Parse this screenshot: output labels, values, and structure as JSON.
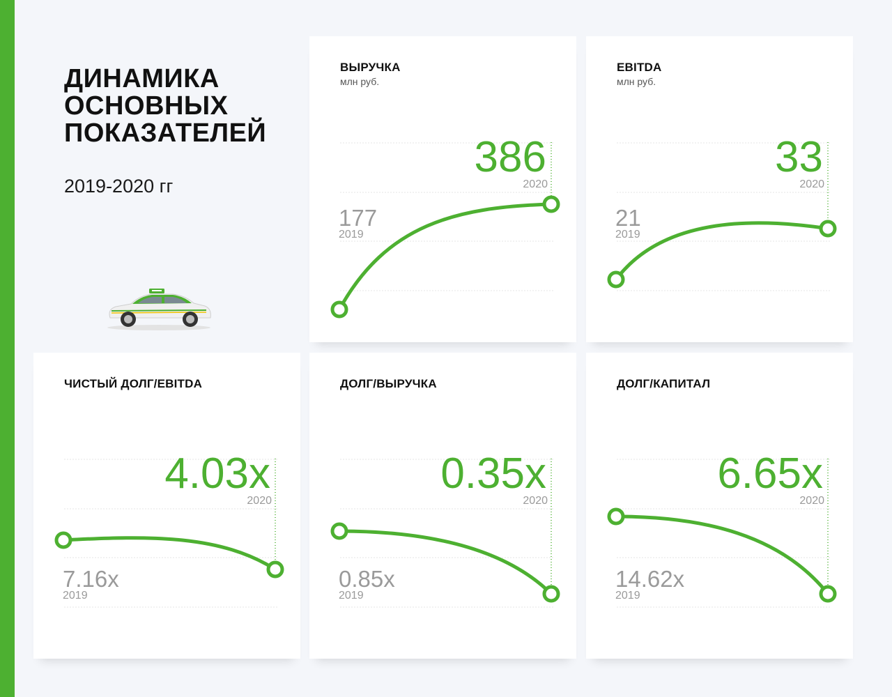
{
  "page": {
    "title_lines": [
      "ДИНАМИКА",
      "ОСНОВНЫХ",
      "ПОКАЗАТЕЛЕЙ"
    ],
    "period": "2019-2020 гг"
  },
  "colors": {
    "accent": "#4db031",
    "muted": "#9a9a9a",
    "grid": "#e6e6e6"
  },
  "chart_data": [
    {
      "type": "line",
      "title": "ВЫРУЧКА",
      "unit": "млн руб.",
      "x": [
        "2019",
        "2020"
      ],
      "values": [
        177,
        386
      ],
      "labels": [
        "177",
        "386"
      ]
    },
    {
      "type": "line",
      "title": "EBITDA",
      "unit": "млн руб.",
      "x": [
        "2019",
        "2020"
      ],
      "values": [
        21,
        33
      ],
      "labels": [
        "21",
        "33"
      ]
    },
    {
      "type": "line",
      "title": "ЧИСТЫЙ ДОЛГ/EBITDA",
      "unit": "",
      "x": [
        "2019",
        "2020"
      ],
      "values": [
        7.16,
        4.03
      ],
      "labels": [
        "7.16x",
        "4.03x"
      ]
    },
    {
      "type": "line",
      "title": "ДОЛГ/ВЫРУЧКА",
      "unit": "",
      "x": [
        "2019",
        "2020"
      ],
      "values": [
        0.85,
        0.35
      ],
      "labels": [
        "0.85x",
        "0.35x"
      ]
    },
    {
      "type": "line",
      "title": "ДОЛГ/КАПИТАЛ",
      "unit": "",
      "x": [
        "2019",
        "2020"
      ],
      "values": [
        14.62,
        6.65
      ],
      "labels": [
        "14.62x",
        "6.65x"
      ]
    }
  ]
}
